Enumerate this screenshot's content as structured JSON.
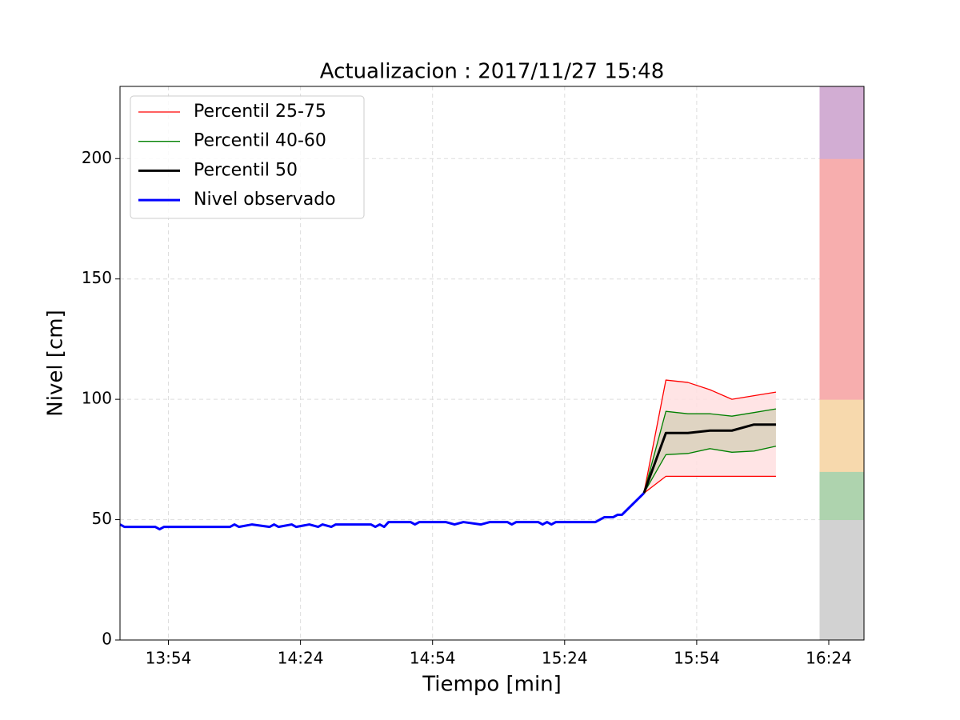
{
  "chart_data": {
    "type": "line",
    "title": "Actualizacion : 2017/11/27 15:48",
    "xlabel": "Tiempo [min]",
    "ylabel": "Nivel [cm]",
    "xlim": [
      "13:43",
      "16:32"
    ],
    "xticks": [
      "13:54",
      "14:24",
      "14:54",
      "15:24",
      "15:54",
      "16:24"
    ],
    "ylim": [
      0,
      230
    ],
    "yticks": [
      0,
      50,
      100,
      150,
      200
    ],
    "grid": true,
    "legend": "upper left",
    "series": [
      {
        "name": "Percentil 25-75",
        "color": "#ff0000",
        "fill": "#ffdfe1",
        "x": [
          "15:42",
          "15:47",
          "15:52",
          "15:57",
          "16:02",
          "16:07",
          "16:12"
        ],
        "lower": [
          61,
          68,
          68,
          68,
          68,
          68,
          68
        ],
        "upper": [
          61,
          108,
          107,
          104,
          100,
          101.5,
          103
        ]
      },
      {
        "name": "Percentil 40-60",
        "color": "#008000",
        "fill": "#d9d1bc",
        "x": [
          "15:42",
          "15:47",
          "15:52",
          "15:57",
          "16:02",
          "16:07",
          "16:12"
        ],
        "lower": [
          61,
          77,
          77.5,
          79.5,
          78,
          78.5,
          80.5
        ],
        "upper": [
          61,
          95,
          94,
          94,
          93,
          94.5,
          96
        ]
      },
      {
        "name": "Percentil 50",
        "color": "#000000",
        "x": [
          "15:42",
          "15:47",
          "15:52",
          "15:57",
          "16:02",
          "16:07",
          "16:12"
        ],
        "values": [
          61,
          86,
          86,
          87,
          87,
          89.5,
          89.5
        ]
      },
      {
        "name": "Nivel observado",
        "color": "#0000ff",
        "x": [
          "13:43",
          "13:44",
          "13:51",
          "13:52",
          "13:53",
          "14:08",
          "14:09",
          "14:10",
          "14:13",
          "14:17",
          "14:18",
          "14:19",
          "14:22",
          "14:23",
          "14:26",
          "14:28",
          "14:29",
          "14:31",
          "14:32",
          "14:40",
          "14:41",
          "14:42",
          "14:43",
          "14:44",
          "14:49",
          "14:50",
          "14:51",
          "14:57",
          "14:59",
          "15:01",
          "15:05",
          "15:07",
          "15:11",
          "15:12",
          "15:13",
          "15:18",
          "15:19",
          "15:20",
          "15:21",
          "15:22",
          "15:31",
          "15:33",
          "15:35",
          "15:36",
          "15:37",
          "15:42"
        ],
        "values": [
          48,
          47,
          47,
          46,
          47,
          47,
          48,
          47,
          48,
          47,
          48,
          47,
          48,
          47,
          48,
          47,
          48,
          47,
          48,
          48,
          47,
          48,
          47,
          49,
          49,
          48,
          49,
          49,
          48,
          49,
          48,
          49,
          49,
          48,
          49,
          49,
          48,
          49,
          48,
          49,
          49,
          51,
          51,
          52,
          52,
          61
        ]
      }
    ],
    "band_x": "16:22",
    "bands": [
      {
        "from": 0,
        "to": 50,
        "color": "#d9d9d9"
      },
      {
        "from": 50,
        "to": 70,
        "color": "#b3dab3"
      },
      {
        "from": 70,
        "to": 100,
        "color": "#ffe0b2"
      },
      {
        "from": 100,
        "to": 200,
        "color": "#ffb3b3"
      },
      {
        "from": 200,
        "to": 230,
        "color": "#d8b2da"
      }
    ]
  }
}
